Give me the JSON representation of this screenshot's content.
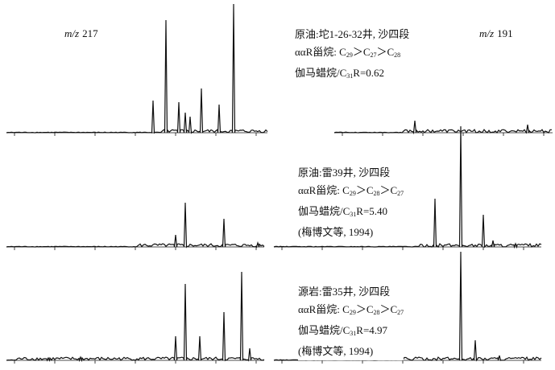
{
  "ion_labels": [
    {
      "ion": "m/z",
      "mass": "217"
    },
    {
      "ion": "m/z",
      "mass": "191"
    }
  ],
  "annotations": [
    {
      "lines": [
        [
          {
            "text": "原油:坨1-26-32井, 沙四段"
          }
        ],
        [
          {
            "text": "ααR甾烷: C",
            "sub": "29"
          },
          {
            "text": "＞C",
            "sub": "27"
          },
          {
            "text": "＞C",
            "sub": "28"
          }
        ],
        [
          {
            "text": "伽马蜡烷/C",
            "sub": "31"
          },
          {
            "text": "R=0.62"
          }
        ]
      ]
    },
    {
      "lines": [
        [
          {
            "text": "原油:雷39井, 沙四段"
          }
        ],
        [
          {
            "text": "ααR甾烷: C",
            "sub": "29"
          },
          {
            "text": "＞C",
            "sub": "28"
          },
          {
            "text": "＞C",
            "sub": "27"
          }
        ],
        [
          {
            "text": "伽马蜡烷/C",
            "sub": "31"
          },
          {
            "text": "R=5.40"
          }
        ],
        [
          {
            "text": "(梅博文等, 1994)"
          }
        ]
      ]
    },
    {
      "lines": [
        [
          {
            "text": "源岩:雷35井, 沙四段"
          }
        ],
        [
          {
            "text": "ααR甾烷: C",
            "sub": "29"
          },
          {
            "text": "＞C",
            "sub": "28"
          },
          {
            "text": "＞C",
            "sub": "27"
          }
        ],
        [
          {
            "text": "伽马蜡烷/C",
            "sub": "31"
          },
          {
            "text": "R=4.97"
          }
        ],
        [
          {
            "text": "(梅博文等, 1994)"
          }
        ]
      ]
    }
  ]
}
